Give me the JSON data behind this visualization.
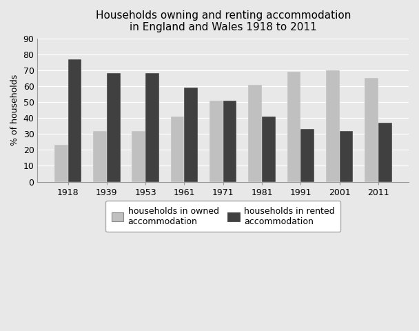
{
  "title": "Households owning and renting accommodation\nin England and Wales 1918 to 2011",
  "ylabel": "% of households",
  "years": [
    "1918",
    "1939",
    "1953",
    "1961",
    "1971",
    "1981",
    "1991",
    "2001",
    "2011"
  ],
  "owned": [
    23,
    32,
    32,
    41,
    51,
    61,
    69,
    70,
    65
  ],
  "rented": [
    77,
    68,
    68,
    59,
    51,
    41,
    33,
    32,
    37
  ],
  "color_owned": "#c0c0c0",
  "color_rented": "#404040",
  "ylim": [
    0,
    90
  ],
  "yticks": [
    0,
    10,
    20,
    30,
    40,
    50,
    60,
    70,
    80,
    90
  ],
  "legend_owned": "households in owned\naccommodation",
  "legend_rented": "households in rented\naccommodation",
  "title_fontsize": 11,
  "axis_fontsize": 9,
  "tick_fontsize": 9,
  "legend_fontsize": 9,
  "figure_facecolor": "#e8e8e8",
  "axes_facecolor": "#e8e8e8"
}
